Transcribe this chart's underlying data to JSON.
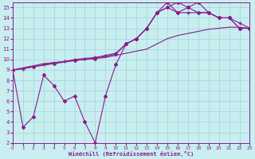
{
  "xlabel": "Windchill (Refroidissement éolien,°C)",
  "xlim": [
    0,
    23
  ],
  "ylim": [
    2,
    15.5
  ],
  "yticks": [
    2,
    3,
    4,
    5,
    6,
    7,
    8,
    9,
    10,
    11,
    12,
    13,
    14,
    15
  ],
  "xticks": [
    0,
    1,
    2,
    3,
    4,
    5,
    6,
    7,
    8,
    9,
    10,
    11,
    12,
    13,
    14,
    15,
    16,
    17,
    18,
    19,
    20,
    21,
    22,
    23
  ],
  "bg_color": "#c8eef0",
  "line_color": "#8b1a8b",
  "grid_color": "#a8d8dc",
  "line1_x": [
    0,
    1,
    2,
    3,
    4,
    5,
    6,
    7,
    8,
    9,
    10,
    11,
    12,
    13,
    14,
    15,
    16,
    17,
    18,
    19,
    20,
    21,
    22,
    23
  ],
  "line1_y": [
    9,
    3.5,
    4.5,
    8.5,
    7.5,
    6.0,
    6.5,
    4.0,
    2.0,
    6.5,
    9.5,
    11.5,
    12.0,
    13.0,
    14.5,
    15.5,
    14.5,
    15.0,
    15.5,
    14.5,
    14.0,
    14.0,
    13.0,
    13.0
  ],
  "line2_x": [
    0,
    1,
    2,
    3,
    4,
    5,
    6,
    7,
    8,
    9,
    10,
    11,
    12,
    13,
    14,
    15,
    16,
    17,
    18,
    19,
    20,
    21,
    22,
    23
  ],
  "line2_y": [
    9.0,
    9.2,
    9.4,
    9.6,
    9.7,
    9.8,
    9.9,
    10.0,
    10.1,
    10.2,
    10.4,
    10.6,
    10.8,
    11.0,
    11.5,
    12.0,
    12.3,
    12.5,
    12.7,
    12.9,
    13.0,
    13.1,
    13.1,
    13.0
  ],
  "line3_x": [
    0,
    1,
    2,
    3,
    4,
    5,
    6,
    7,
    8,
    9,
    10,
    11,
    12,
    13,
    14,
    15,
    16,
    17,
    18,
    19,
    20,
    21,
    22,
    23
  ],
  "line3_y": [
    9.0,
    9.1,
    9.3,
    9.5,
    9.7,
    9.8,
    10.0,
    10.1,
    10.2,
    10.4,
    10.6,
    11.5,
    12.0,
    13.0,
    14.5,
    15.0,
    14.5,
    14.5,
    14.5,
    14.5,
    14.0,
    14.0,
    13.5,
    13.0
  ],
  "line4_x": [
    0,
    2,
    4,
    6,
    8,
    10,
    11,
    12,
    13,
    14,
    15,
    16,
    17,
    18,
    19,
    20,
    21,
    22,
    23
  ],
  "line4_y": [
    9.0,
    9.3,
    9.6,
    9.9,
    10.1,
    10.5,
    11.5,
    12.0,
    13.0,
    14.5,
    15.0,
    15.5,
    15.0,
    14.5,
    14.5,
    14.0,
    14.0,
    13.0,
    13.0
  ]
}
